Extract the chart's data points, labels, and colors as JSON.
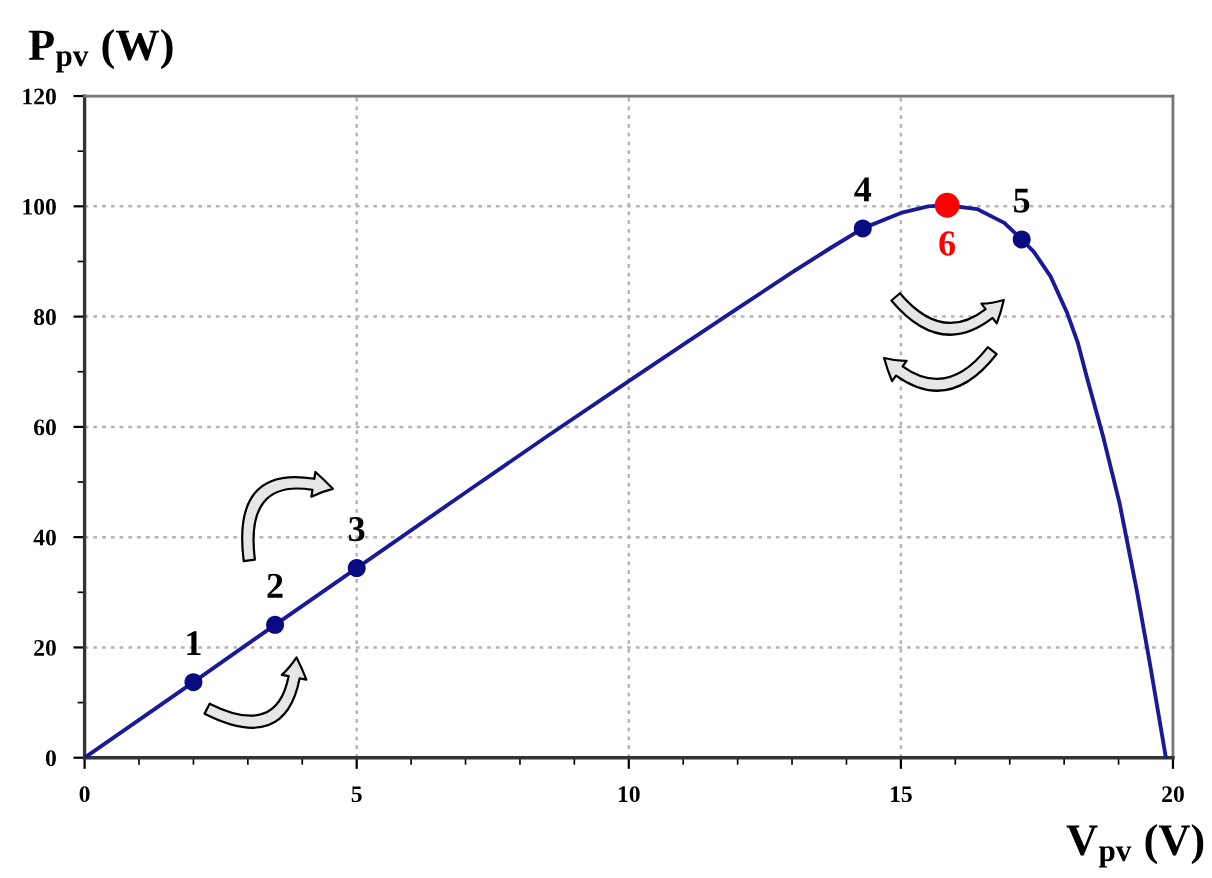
{
  "chart_data": {
    "type": "line",
    "xlabel": "V$_{pv}$ (V)",
    "ylabel": "P$_{pv}$ (W)",
    "xlim": [
      0,
      20
    ],
    "ylim": [
      0,
      120
    ],
    "xticks": [
      0,
      {
        "value": 1,
        "label": null
      },
      {
        "value": 2,
        "label": null
      },
      {
        "value": 3,
        "label": null
      },
      {
        "value": 4,
        "label": null
      },
      5,
      {
        "value": 6,
        "label": null
      },
      {
        "value": 7,
        "label": null
      },
      {
        "value": 8,
        "label": null
      },
      {
        "value": 9,
        "label": null
      },
      10,
      {
        "value": 11,
        "label": null
      },
      {
        "value": 12,
        "label": null
      },
      {
        "value": 13,
        "label": null
      },
      {
        "value": 14,
        "label": null
      },
      15,
      {
        "value": 16,
        "label": null
      },
      {
        "value": 17,
        "label": null
      },
      {
        "value": 18,
        "label": null
      },
      {
        "value": 19,
        "label": null
      },
      20
    ],
    "yticks": [
      0,
      {
        "value": 10,
        "label": null
      },
      20,
      {
        "value": 30,
        "label": null
      },
      40,
      {
        "value": 50,
        "label": null
      },
      60,
      {
        "value": 70,
        "label": null
      },
      80,
      {
        "value": 90,
        "label": null
      },
      100,
      {
        "value": 110,
        "label": null
      },
      120
    ],
    "grid": true,
    "series": [
      {
        "color": "#1a1a99",
        "line_style": "solid",
        "x": [
          0,
          2,
          3.5,
          5,
          7,
          8.5,
          10,
          11,
          12,
          13,
          13.7,
          14.3,
          15,
          15.5,
          15.85,
          16.4,
          16.9,
          17.22,
          17.44,
          17.75,
          18.05,
          18.25,
          18.42,
          18.72,
          19.02,
          19.33,
          19.57,
          19.87
        ],
        "values": [
          0,
          13.7,
          24.1,
          34.4,
          48.1,
          58.3,
          68.3,
          74.9,
          81.5,
          88,
          92.4,
          96,
          98.8,
          100,
          100.2,
          99.5,
          97,
          94,
          91.8,
          87.3,
          80.8,
          75.3,
          68.9,
          58.1,
          46.1,
          30.6,
          17.4,
          0
        ]
      },
      {
        "type": "scatter",
        "color": "#0a0a80",
        "marker": "circle",
        "x": [
          2,
          3.5,
          5,
          14.3,
          17.22
        ],
        "values": [
          13.7,
          24.1,
          34.4,
          96,
          94
        ]
      },
      {
        "type": "scatter",
        "color": "#ff0000",
        "marker": "circle",
        "x": [
          15.85
        ],
        "values": [
          100.2
        ]
      }
    ],
    "annotations": [
      {
        "text": "1",
        "x": 2,
        "y": 13.7
      },
      {
        "text": "2",
        "x": 3.5,
        "y": 24.1
      },
      {
        "text": "3",
        "x": 5,
        "y": 34.4
      },
      {
        "text": "4",
        "x": 14.3,
        "y": 96
      },
      {
        "text": "5",
        "x": 17.22,
        "y": 94
      },
      {
        "text": "6",
        "x": 15.85,
        "y": 100.2
      }
    ]
  }
}
